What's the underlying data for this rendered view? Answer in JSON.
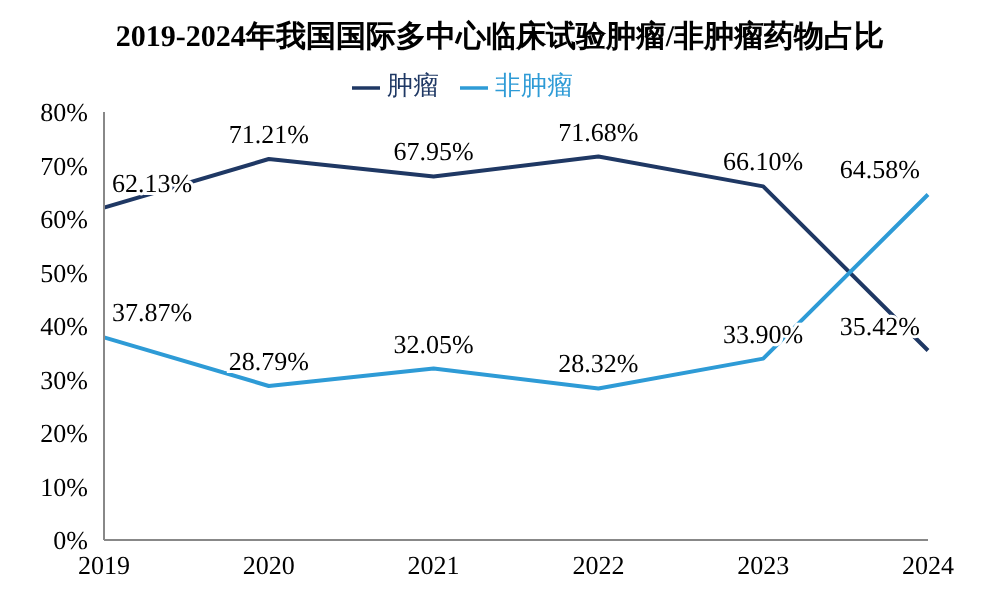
{
  "chart_data": {
    "type": "line",
    "title": "2019-2024年我国国际多中心临床试验肿瘤/非肿瘤药物占比",
    "categories": [
      "2019",
      "2020",
      "2021",
      "2022",
      "2023",
      "2024"
    ],
    "series": [
      {
        "name": "肿瘤",
        "color": "#1f3864",
        "values": [
          62.13,
          71.21,
          67.95,
          71.68,
          66.1,
          35.42
        ],
        "value_labels": [
          "62.13%",
          "71.21%",
          "67.95%",
          "71.68%",
          "66.10%",
          "35.42%"
        ]
      },
      {
        "name": "非肿瘤",
        "color": "#2e9bd6",
        "values": [
          37.87,
          28.79,
          32.05,
          28.32,
          33.9,
          64.58
        ],
        "value_labels": [
          "37.87%",
          "28.79%",
          "32.05%",
          "28.32%",
          "33.90%",
          "64.58%"
        ]
      }
    ],
    "ylim": [
      0,
      80
    ],
    "yticks": [
      {
        "value": 0,
        "label": "0%"
      },
      {
        "value": 10,
        "label": "10%"
      },
      {
        "value": 20,
        "label": "20%"
      },
      {
        "value": 30,
        "label": "30%"
      },
      {
        "value": 40,
        "label": "40%"
      },
      {
        "value": 50,
        "label": "50%"
      },
      {
        "value": 60,
        "label": "60%"
      },
      {
        "value": 70,
        "label": "70%"
      },
      {
        "value": 80,
        "label": "80%"
      }
    ],
    "grid": false,
    "legend": "top",
    "marker": "none",
    "line_style": "solid"
  }
}
